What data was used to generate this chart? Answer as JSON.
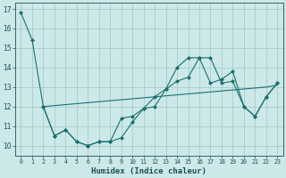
{
  "xlabel": "Humidex (Indice chaleur)",
  "background_color": "#cce8e8",
  "grid_color": "#aacccc",
  "line_color": "#1a7070",
  "x_ticks": [
    0,
    1,
    2,
    3,
    4,
    5,
    6,
    7,
    8,
    9,
    10,
    11,
    12,
    13,
    14,
    15,
    16,
    17,
    18,
    19,
    20,
    21,
    22,
    23
  ],
  "y_ticks": [
    10,
    11,
    12,
    13,
    14,
    15,
    16,
    17
  ],
  "ylim": [
    9.5,
    17.3
  ],
  "xlim": [
    -0.5,
    23.5
  ],
  "series1_x": [
    0,
    1,
    2,
    3,
    4,
    5,
    6,
    7,
    8,
    9,
    10,
    11,
    12,
    13,
    14,
    15,
    16,
    17,
    18,
    19,
    20,
    21,
    22,
    23
  ],
  "series1_y": [
    16.8,
    15.4,
    12.0,
    10.5,
    10.8,
    10.2,
    10.0,
    10.2,
    10.2,
    10.4,
    11.2,
    11.9,
    12.0,
    12.9,
    14.0,
    14.5,
    14.5,
    14.5,
    13.2,
    13.3,
    12.0,
    11.5,
    12.5,
    13.2
  ],
  "series2_x": [
    2,
    3,
    4,
    5,
    6,
    7,
    8,
    9,
    10,
    11,
    12,
    13,
    14,
    15,
    16,
    17,
    18,
    19,
    20,
    21,
    22,
    23
  ],
  "series2_y": [
    12.0,
    12.05,
    12.1,
    12.15,
    12.2,
    12.25,
    12.3,
    12.35,
    12.4,
    12.45,
    12.5,
    12.55,
    12.6,
    12.65,
    12.7,
    12.75,
    12.8,
    12.85,
    12.9,
    12.95,
    13.0,
    13.1
  ],
  "series3_x": [
    2,
    3,
    4,
    5,
    6,
    7,
    8,
    9,
    10,
    11,
    12,
    13,
    14,
    15,
    16,
    17,
    18,
    19,
    20,
    21,
    22,
    23
  ],
  "series3_y": [
    12.0,
    10.5,
    10.8,
    10.2,
    10.0,
    10.2,
    10.2,
    11.4,
    11.5,
    11.9,
    12.5,
    12.9,
    13.3,
    13.5,
    14.5,
    13.2,
    13.4,
    13.8,
    12.0,
    11.5,
    12.5,
    13.2
  ]
}
